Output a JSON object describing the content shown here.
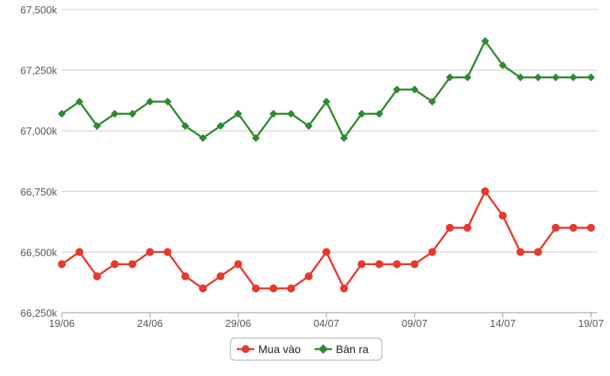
{
  "chart_data": {
    "type": "line",
    "title": "",
    "xlabel": "",
    "ylabel": "",
    "ylim": [
      66250,
      67500
    ],
    "yticks": [
      66250,
      66500,
      66750,
      67000,
      67250,
      67500
    ],
    "ytick_labels": [
      "66,250k",
      "66,500k",
      "66,750k",
      "67,000k",
      "67,250k",
      "67,500k"
    ],
    "xtick_labels": [
      {
        "index": 0,
        "label": "19/06"
      },
      {
        "index": 5,
        "label": "24/06"
      },
      {
        "index": 10,
        "label": "29/06"
      },
      {
        "index": 15,
        "label": "04/07"
      },
      {
        "index": 20,
        "label": "09/07"
      },
      {
        "index": 25,
        "label": "14/07"
      },
      {
        "index": 30,
        "label": "19/07"
      }
    ],
    "x": [
      "19/06",
      "20/06",
      "21/06",
      "22/06",
      "23/06",
      "24/06",
      "25/06",
      "26/06",
      "27/06",
      "28/06",
      "29/06",
      "30/06",
      "01/07",
      "02/07",
      "03/07",
      "04/07",
      "05/07",
      "06/07",
      "07/07",
      "08/07",
      "09/07",
      "10/07",
      "11/07",
      "12/07",
      "13/07",
      "14/07",
      "15/07",
      "16/07",
      "17/07",
      "18/07",
      "19/07"
    ],
    "grid": true,
    "legend_position": "bottom-center",
    "series": [
      {
        "name": "Mua vào",
        "color": "#e8392c",
        "marker": "circle",
        "values": [
          66450,
          66500,
          66400,
          66450,
          66450,
          66500,
          66500,
          66400,
          66350,
          66400,
          66450,
          66350,
          66350,
          66350,
          66400,
          66500,
          66350,
          66450,
          66450,
          66450,
          66450,
          66500,
          66600,
          66600,
          66750,
          66650,
          66500,
          66500,
          66600,
          66600,
          66600
        ]
      },
      {
        "name": "Bán ra",
        "color": "#2e8b2e",
        "marker": "diamond",
        "values": [
          67070,
          67120,
          67020,
          67070,
          67070,
          67120,
          67120,
          67020,
          66970,
          67020,
          67070,
          66970,
          67070,
          67070,
          67020,
          67120,
          66970,
          67070,
          67070,
          67170,
          67170,
          67120,
          67220,
          67220,
          67370,
          67270,
          67220,
          67220,
          67220,
          67220,
          67220
        ]
      }
    ]
  }
}
